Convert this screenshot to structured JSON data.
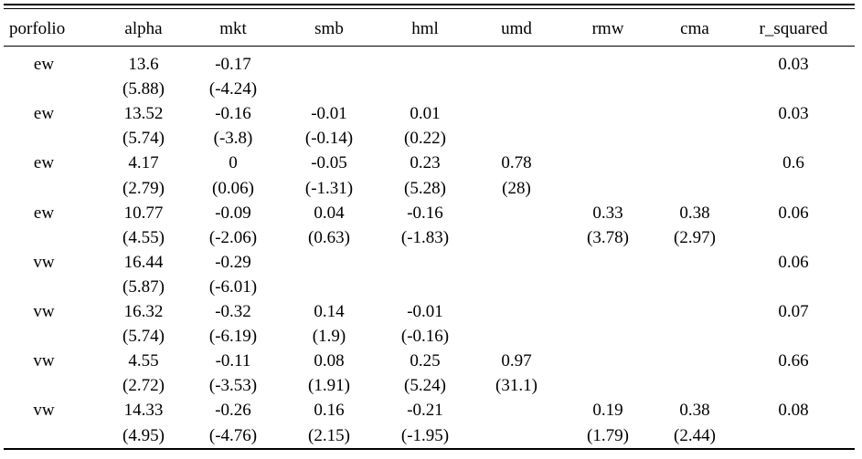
{
  "table": {
    "header": [
      "porfolio",
      "alpha",
      "mkt",
      "smb",
      "hml",
      "umd",
      "rmw",
      "cma",
      "r_squared"
    ],
    "rows": [
      [
        "ew",
        "13.6",
        "-0.17",
        null,
        null,
        null,
        null,
        null,
        "0.03"
      ],
      [
        null,
        "(5.88)",
        "(-4.24)",
        null,
        null,
        null,
        null,
        null,
        null
      ],
      [
        "ew",
        "13.52",
        "-0.16",
        "-0.01",
        "0.01",
        null,
        null,
        null,
        "0.03"
      ],
      [
        null,
        "(5.74)",
        "(-3.8)",
        "(-0.14)",
        "(0.22)",
        null,
        null,
        null,
        null
      ],
      [
        "ew",
        "4.17",
        "0",
        "-0.05",
        "0.23",
        "0.78",
        null,
        null,
        "0.6"
      ],
      [
        null,
        "(2.79)",
        "(0.06)",
        "(-1.31)",
        "(5.28)",
        "(28)",
        null,
        null,
        null
      ],
      [
        "ew",
        "10.77",
        "-0.09",
        "0.04",
        "-0.16",
        null,
        "0.33",
        "0.38",
        "0.06"
      ],
      [
        null,
        "(4.55)",
        "(-2.06)",
        "(0.63)",
        "(-1.83)",
        null,
        "(3.78)",
        "(2.97)",
        null
      ],
      [
        "vw",
        "16.44",
        "-0.29",
        null,
        null,
        null,
        null,
        null,
        "0.06"
      ],
      [
        null,
        "(5.87)",
        "(-6.01)",
        null,
        null,
        null,
        null,
        null,
        null
      ],
      [
        "vw",
        "16.32",
        "-0.32",
        "0.14",
        "-0.01",
        null,
        null,
        null,
        "0.07"
      ],
      [
        null,
        "(5.74)",
        "(-6.19)",
        "(1.9)",
        "(-0.16)",
        null,
        null,
        null,
        null
      ],
      [
        "vw",
        "4.55",
        "-0.11",
        "0.08",
        "0.25",
        "0.97",
        null,
        null,
        "0.66"
      ],
      [
        null,
        "(2.72)",
        "(-3.53)",
        "(1.91)",
        "(5.24)",
        "(31.1)",
        null,
        null,
        null
      ],
      [
        "vw",
        "14.33",
        "-0.26",
        "0.16",
        "-0.21",
        null,
        "0.19",
        "0.38",
        "0.08"
      ],
      [
        null,
        "(4.95)",
        "(-4.76)",
        "(2.15)",
        "(-1.95)",
        null,
        "(1.79)",
        "(2.44)",
        null
      ]
    ]
  }
}
